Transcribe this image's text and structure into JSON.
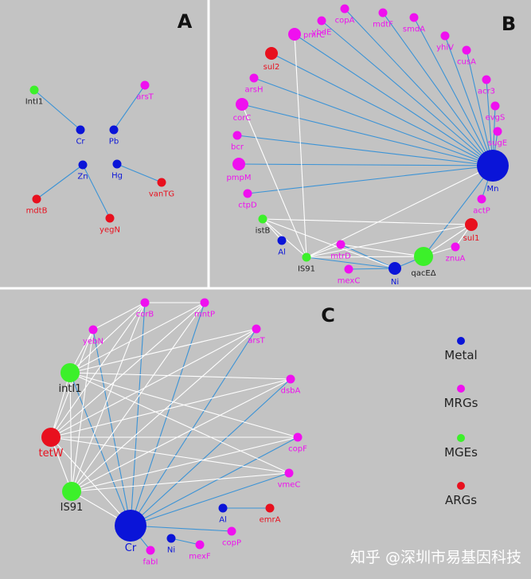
{
  "panels": {
    "A": {
      "label": "A",
      "nodes": [
        {
          "id": "intI1",
          "label": "IntI1",
          "kind": "MGE",
          "size": "small"
        },
        {
          "id": "arsT",
          "label": "arsT",
          "kind": "MRG",
          "size": "small"
        },
        {
          "id": "Cr",
          "label": "Cr",
          "kind": "Metal",
          "size": "small"
        },
        {
          "id": "Pb",
          "label": "Pb",
          "kind": "Metal",
          "size": "small"
        },
        {
          "id": "Zn",
          "label": "Zn",
          "kind": "Metal",
          "size": "small"
        },
        {
          "id": "Hg",
          "label": "Hg",
          "kind": "Metal",
          "size": "small"
        },
        {
          "id": "mdtB",
          "label": "mdtB",
          "kind": "ARG",
          "size": "small"
        },
        {
          "id": "vanTG",
          "label": "vanTG",
          "kind": "ARG",
          "size": "small"
        },
        {
          "id": "yegN",
          "label": "yegN",
          "kind": "ARG",
          "size": "small"
        }
      ],
      "edges": [
        [
          "intI1",
          "Cr",
          "blue"
        ],
        [
          "arsT",
          "Pb",
          "blue"
        ],
        [
          "Zn",
          "mdtB",
          "blue"
        ],
        [
          "Zn",
          "yegN",
          "blue"
        ],
        [
          "Hg",
          "vanTG",
          "blue"
        ]
      ]
    },
    "B": {
      "label": "B",
      "nodes": [
        {
          "id": "copA",
          "label": "copA",
          "kind": "MRG",
          "size": "small"
        },
        {
          "id": "mdtF",
          "label": "mdtF",
          "kind": "MRG",
          "size": "small"
        },
        {
          "id": "ybdE",
          "label": "ybdE",
          "kind": "MRG",
          "size": "small"
        },
        {
          "id": "smdA",
          "label": "smdA",
          "kind": "MRG",
          "size": "small"
        },
        {
          "id": "pmrC",
          "label": "pmrC",
          "kind": "MRG",
          "size": "medium"
        },
        {
          "id": "yhiV",
          "label": "yhiV",
          "kind": "MRG",
          "size": "small"
        },
        {
          "id": "sul2",
          "label": "sul2",
          "kind": "ARG",
          "size": "medium"
        },
        {
          "id": "cusA",
          "label": "cusA",
          "kind": "MRG",
          "size": "small"
        },
        {
          "id": "arsH",
          "label": "arsH",
          "kind": "MRG",
          "size": "small"
        },
        {
          "id": "acr3",
          "label": "acr3",
          "kind": "MRG",
          "size": "small"
        },
        {
          "id": "corC",
          "label": "corC",
          "kind": "MRG",
          "size": "medium"
        },
        {
          "id": "evgS",
          "label": "evgS",
          "kind": "MRG",
          "size": "small"
        },
        {
          "id": "bcr",
          "label": "bcr",
          "kind": "MRG",
          "size": "small"
        },
        {
          "id": "sugE",
          "label": "sugE",
          "kind": "MRG",
          "size": "small"
        },
        {
          "id": "pmpM",
          "label": "pmpM",
          "kind": "MRG",
          "size": "medium"
        },
        {
          "id": "Mn",
          "label": "Mn",
          "kind": "Metal",
          "size": "huge"
        },
        {
          "id": "ctpD",
          "label": "ctpD",
          "kind": "MRG",
          "size": "small"
        },
        {
          "id": "actP",
          "label": "actP",
          "kind": "MRG",
          "size": "small"
        },
        {
          "id": "istB",
          "label": "istB",
          "kind": "MGE",
          "size": "small"
        },
        {
          "id": "sul1",
          "label": "sul1",
          "kind": "ARG",
          "size": "medium"
        },
        {
          "id": "Al",
          "label": "Al",
          "kind": "Metal",
          "size": "small"
        },
        {
          "id": "znuA",
          "label": "znuA",
          "kind": "MRG",
          "size": "small"
        },
        {
          "id": "mtrD",
          "label": "mtrD",
          "kind": "MRG",
          "size": "small"
        },
        {
          "id": "IS91",
          "label": "IS91",
          "kind": "MGE",
          "size": "small"
        },
        {
          "id": "qacE",
          "label": "qacEΔ",
          "kind": "MGE",
          "size": "large"
        },
        {
          "id": "mexC",
          "label": "mexC",
          "kind": "MRG",
          "size": "small"
        },
        {
          "id": "Ni",
          "label": "Ni",
          "kind": "Metal",
          "size": "medium"
        }
      ],
      "edges": [
        [
          "Mn",
          "copA",
          "blue"
        ],
        [
          "Mn",
          "mdtF",
          "blue"
        ],
        [
          "Mn",
          "ybdE",
          "blue"
        ],
        [
          "Mn",
          "smdA",
          "blue"
        ],
        [
          "Mn",
          "pmrC",
          "blue"
        ],
        [
          "Mn",
          "yhiV",
          "blue"
        ],
        [
          "Mn",
          "sul2",
          "blue"
        ],
        [
          "Mn",
          "cusA",
          "blue"
        ],
        [
          "Mn",
          "arsH",
          "blue"
        ],
        [
          "Mn",
          "acr3",
          "blue"
        ],
        [
          "Mn",
          "corC",
          "blue"
        ],
        [
          "Mn",
          "evgS",
          "blue"
        ],
        [
          "Mn",
          "bcr",
          "blue"
        ],
        [
          "Mn",
          "sugE",
          "blue"
        ],
        [
          "Mn",
          "pmpM",
          "blue"
        ],
        [
          "Mn",
          "ctpD",
          "blue"
        ],
        [
          "Mn",
          "actP",
          "blue"
        ],
        [
          "Mn",
          "IS91",
          "white"
        ],
        [
          "Mn",
          "qacE",
          "blue"
        ],
        [
          "Ni",
          "IS91",
          "blue"
        ],
        [
          "Ni",
          "mtrD",
          "blue"
        ],
        [
          "Ni",
          "mexC",
          "blue"
        ],
        [
          "Ni",
          "qacE",
          "blue"
        ],
        [
          "Ni",
          "istB",
          "white"
        ],
        [
          "istB",
          "sul1",
          "white"
        ],
        [
          "qacE",
          "sul1",
          "white"
        ],
        [
          "qacE",
          "znuA",
          "white"
        ],
        [
          "znuA",
          "sul1",
          "white"
        ],
        [
          "IS91",
          "sul1",
          "white"
        ],
        [
          "IS91",
          "qacE",
          "white"
        ],
        [
          "IS91",
          "mtrD",
          "white"
        ],
        [
          "IS91",
          "istB",
          "white"
        ],
        [
          "Al",
          "istB",
          "white"
        ],
        [
          "IS91",
          "corC",
          "white"
        ],
        [
          "IS91",
          "pmrC",
          "white"
        ],
        [
          "mtrD",
          "qacE",
          "white"
        ]
      ]
    },
    "C": {
      "label": "C",
      "nodes": [
        {
          "id": "corB",
          "label": "corB",
          "kind": "MRG",
          "size": "small"
        },
        {
          "id": "mntP",
          "label": "mntP",
          "kind": "MRG",
          "size": "small"
        },
        {
          "id": "yebN",
          "label": "yebN",
          "kind": "MRG",
          "size": "small"
        },
        {
          "id": "arsT",
          "label": "arsT",
          "kind": "MRG",
          "size": "small"
        },
        {
          "id": "intI1",
          "label": "intI1",
          "kind": "MGE",
          "size": "large"
        },
        {
          "id": "dsbA",
          "label": "dsbA",
          "kind": "MRG",
          "size": "small"
        },
        {
          "id": "tetW",
          "label": "tetW",
          "kind": "ARG",
          "size": "large"
        },
        {
          "id": "copF",
          "label": "copF",
          "kind": "MRG",
          "size": "small"
        },
        {
          "id": "vmeC",
          "label": "vmeC",
          "kind": "MRG",
          "size": "small"
        },
        {
          "id": "IS91",
          "label": "IS91",
          "kind": "MGE",
          "size": "large"
        },
        {
          "id": "Al",
          "label": "Al",
          "kind": "Metal",
          "size": "small"
        },
        {
          "id": "emrA",
          "label": "emrA",
          "kind": "ARG",
          "size": "small"
        },
        {
          "id": "Cr",
          "label": "Cr",
          "kind": "Metal",
          "size": "huge"
        },
        {
          "id": "copP",
          "label": "copP",
          "kind": "MRG",
          "size": "small"
        },
        {
          "id": "Ni",
          "label": "Ni",
          "kind": "Metal",
          "size": "small"
        },
        {
          "id": "mexF",
          "label": "mexF",
          "kind": "MRG",
          "size": "small"
        },
        {
          "id": "fabI",
          "label": "fabI",
          "kind": "MRG",
          "size": "small"
        }
      ],
      "edges": [
        [
          "Cr",
          "corB",
          "blue"
        ],
        [
          "Cr",
          "mntP",
          "blue"
        ],
        [
          "Cr",
          "yebN",
          "blue"
        ],
        [
          "Cr",
          "arsT",
          "blue"
        ],
        [
          "Cr",
          "dsbA",
          "blue"
        ],
        [
          "Cr",
          "copF",
          "blue"
        ],
        [
          "Cr",
          "vmeC",
          "blue"
        ],
        [
          "Cr",
          "copP",
          "blue"
        ],
        [
          "Cr",
          "fabI",
          "blue"
        ],
        [
          "Cr",
          "intI1",
          "blue"
        ],
        [
          "Cr",
          "tetW",
          "white"
        ],
        [
          "Cr",
          "IS91",
          "white"
        ],
        [
          "Al",
          "emrA",
          "blue"
        ],
        [
          "Ni",
          "mexF",
          "blue"
        ],
        [
          "intI1",
          "corB",
          "white"
        ],
        [
          "intI1",
          "mntP",
          "white"
        ],
        [
          "intI1",
          "arsT",
          "white"
        ],
        [
          "intI1",
          "dsbA",
          "white"
        ],
        [
          "intI1",
          "copF",
          "white"
        ],
        [
          "intI1",
          "vmeC",
          "white"
        ],
        [
          "intI1",
          "yebN",
          "white"
        ],
        [
          "intI1",
          "tetW",
          "white"
        ],
        [
          "intI1",
          "IS91",
          "white"
        ],
        [
          "tetW",
          "corB",
          "white"
        ],
        [
          "tetW",
          "mntP",
          "white"
        ],
        [
          "tetW",
          "arsT",
          "white"
        ],
        [
          "tetW",
          "dsbA",
          "white"
        ],
        [
          "tetW",
          "copF",
          "white"
        ],
        [
          "tetW",
          "vmeC",
          "white"
        ],
        [
          "tetW",
          "yebN",
          "white"
        ],
        [
          "tetW",
          "IS91",
          "white"
        ],
        [
          "IS91",
          "corB",
          "white"
        ],
        [
          "IS91",
          "mntP",
          "white"
        ],
        [
          "IS91",
          "arsT",
          "white"
        ],
        [
          "IS91",
          "dsbA",
          "white"
        ],
        [
          "IS91",
          "copF",
          "white"
        ],
        [
          "IS91",
          "vmeC",
          "white"
        ],
        [
          "IS91",
          "yebN",
          "white"
        ],
        [
          "yebN",
          "corB",
          "white"
        ],
        [
          "corB",
          "mntP",
          "white"
        ]
      ]
    }
  },
  "legend": [
    {
      "label": "Metal",
      "kind": "Metal"
    },
    {
      "label": "MRGs",
      "kind": "MRG"
    },
    {
      "label": "MGEs",
      "kind": "MGE"
    },
    {
      "label": "ARGs",
      "kind": "ARG"
    }
  ],
  "watermark": "知乎 @深圳市易基因科技",
  "colors": {
    "Metal": "#0a14d8",
    "MRG": "#ef10ef",
    "MGE": "#3cf02a",
    "ARG": "#e8101e",
    "edge_blue": "#3b93d6",
    "edge_white": "#ffffff",
    "panel_bg": "#c3c3c3",
    "divider": "#ffffff",
    "label_dark": "#222222",
    "panel_letter": "#111111"
  }
}
